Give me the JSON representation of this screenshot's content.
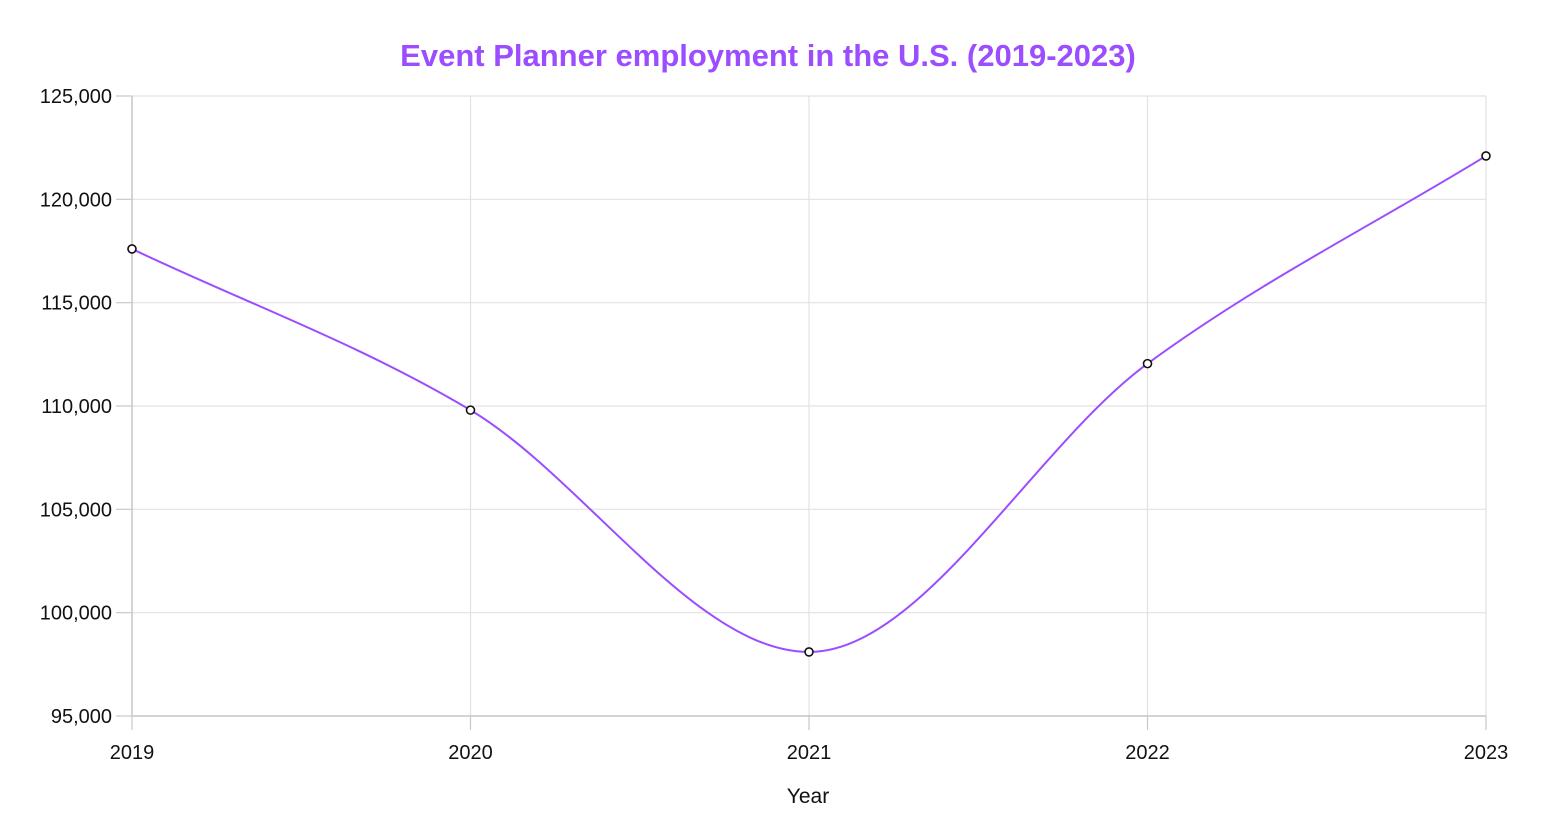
{
  "chart_data": {
    "type": "line",
    "title": "Event Planner employment in the U.S. (2019-2023)",
    "xlabel": "Year",
    "ylabel": "",
    "categories": [
      "2019",
      "2020",
      "2021",
      "2022",
      "2023"
    ],
    "series": [
      {
        "values": [
          117600,
          109800,
          98100,
          112050,
          122100
        ]
      }
    ],
    "ylim": [
      95000,
      125000
    ],
    "yticks": [
      95000,
      100000,
      105000,
      110000,
      115000,
      120000,
      125000
    ],
    "ytick_labels": [
      "95,000",
      "100,000",
      "105,000",
      "110,000",
      "115,000",
      "120,000",
      "125,000"
    ],
    "grid": true,
    "legend": "none",
    "smooth": true,
    "colors": {
      "title": "#9b4dff",
      "line": "#9b4dff",
      "point_stroke": "#111111",
      "point_fill": "#ffffff"
    }
  }
}
